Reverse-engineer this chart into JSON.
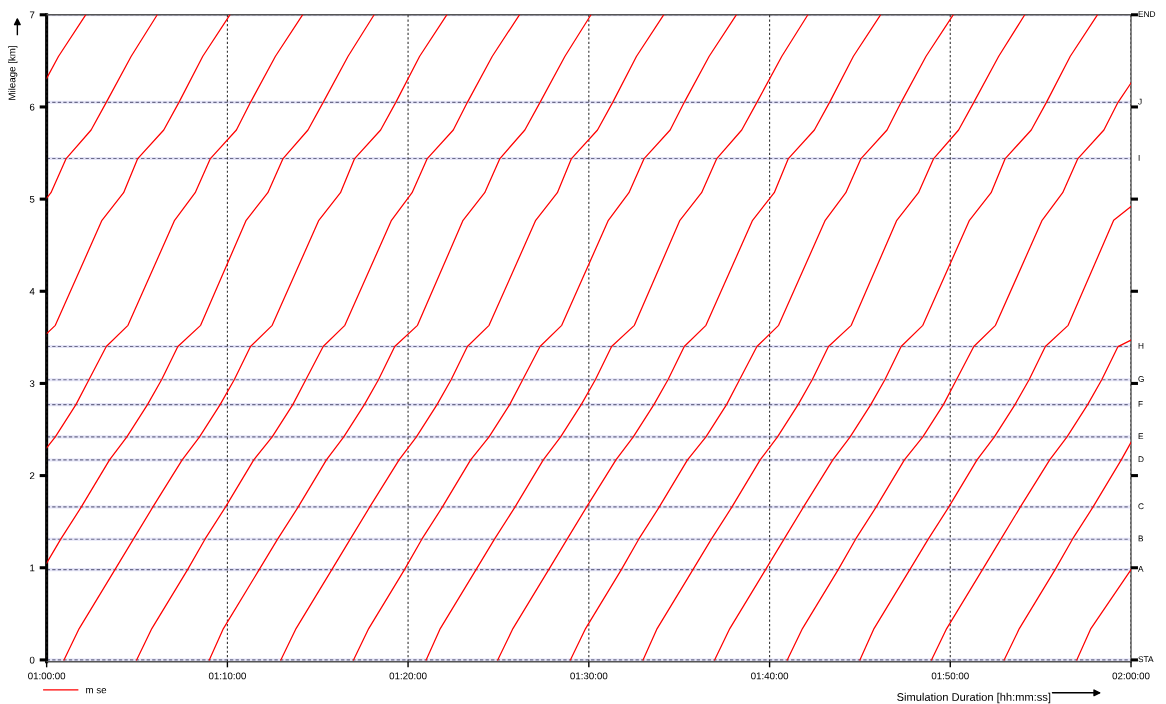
{
  "chart_data": {
    "type": "line",
    "xlabel": "Simulation Duration [hh:mm:ss]",
    "ylabel": "Mileage [km]",
    "xlim": [
      1.0,
      2.0
    ],
    "ylim": [
      -0.02,
      7.0
    ],
    "xticks": [
      {
        "value": 1.0,
        "label": "01:00:00"
      },
      {
        "value": 1.1667,
        "label": "01:10:00"
      },
      {
        "value": 1.3333,
        "label": "01:20:00"
      },
      {
        "value": 1.5,
        "label": "01:30:00"
      },
      {
        "value": 1.6667,
        "label": "01:40:00"
      },
      {
        "value": 1.8333,
        "label": "01:50:00"
      },
      {
        "value": 2.0,
        "label": "02:00:00"
      }
    ],
    "yticks": [
      0,
      1,
      2,
      3,
      4,
      5,
      6,
      7
    ],
    "grid": "x",
    "legend": "bottom left",
    "line_style": "solid",
    "marker": "none",
    "ref_lines": [
      {
        "axis": "y",
        "value": 0,
        "label": "STA",
        "color": "#6b6b8a",
        "line_style": "dashed"
      },
      {
        "axis": "y",
        "value": 0.98,
        "label": "A",
        "color": "#6b6b8a",
        "line_style": "dashed"
      },
      {
        "axis": "y",
        "value": 1.31,
        "label": "B",
        "color": "#6b6b8a",
        "line_style": "dashed"
      },
      {
        "axis": "y",
        "value": 1.66,
        "label": "C",
        "color": "#6b6b8a",
        "line_style": "dashed"
      },
      {
        "axis": "y",
        "value": 2.17,
        "label": "D",
        "color": "#6b6b8a",
        "line_style": "dashed"
      },
      {
        "axis": "y",
        "value": 2.42,
        "label": "E",
        "color": "#6b6b8a",
        "line_style": "dashed"
      },
      {
        "axis": "y",
        "value": 2.77,
        "label": "F",
        "color": "#6b6b8a",
        "line_style": "dashed"
      },
      {
        "axis": "y",
        "value": 3.04,
        "label": "G",
        "color": "#6b6b8a",
        "line_style": "dashed"
      },
      {
        "axis": "y",
        "value": 3.4,
        "label": "H",
        "color": "#6b6b8a",
        "line_style": "dashed"
      },
      {
        "axis": "y",
        "value": 5.44,
        "label": "I",
        "color": "#6b6b8a",
        "line_style": "dashed"
      },
      {
        "axis": "y",
        "value": 6.05,
        "label": "J",
        "color": "#6b6b8a",
        "line_style": "dashed"
      },
      {
        "axis": "y",
        "value": 7.0,
        "label": "END",
        "color": "#6b6b8a",
        "line_style": "dashed"
      }
    ],
    "series": [
      {
        "name": "m se",
        "color": "#ff0000",
        "x": [
          1.0,
          1.011,
          1.036,
          null,
          1.0,
          1.004,
          1.018,
          1.041,
          1.055,
          1.078,
          1.102,
          null,
          1.0,
          1.008,
          1.051,
          1.071,
          1.084,
          1.108,
          1.122,
          1.144,
          1.169,
          null,
          1.0,
          1.008,
          1.027,
          1.039,
          1.055,
          1.075,
          1.118,
          1.137,
          1.151,
          1.175,
          1.188,
          1.211,
          1.236,
          null,
          1.0,
          1.013,
          1.032,
          1.058,
          1.074,
          1.093,
          1.106,
          1.121,
          1.142,
          1.184,
          1.204,
          1.218,
          1.241,
          1.255,
          1.278,
          1.302,
          null,
          1.016,
          1.03,
          1.063,
          1.08,
          1.098,
          1.125,
          1.141,
          1.16,
          1.173,
          1.188,
          1.208,
          1.251,
          1.271,
          1.284,
          1.308,
          1.322,
          1.344,
          1.369,
          null,
          1.083,
          1.097,
          1.13,
          1.146,
          1.165,
          1.191,
          1.208,
          1.227,
          1.239,
          1.255,
          1.275,
          1.318,
          1.337,
          1.351,
          1.375,
          1.388,
          1.411,
          1.436,
          null,
          1.15,
          1.163,
          1.196,
          1.213,
          1.232,
          1.258,
          1.274,
          1.293,
          1.306,
          1.321,
          1.342,
          1.384,
          1.404,
          1.418,
          1.441,
          1.455,
          1.478,
          1.502,
          null,
          1.216,
          1.23,
          1.263,
          1.28,
          1.298,
          1.325,
          1.341,
          1.36,
          1.373,
          1.388,
          1.408,
          1.451,
          1.471,
          1.484,
          1.508,
          1.522,
          1.544,
          1.569,
          null,
          1.283,
          1.297,
          1.33,
          1.346,
          1.365,
          1.391,
          1.408,
          1.427,
          1.439,
          1.455,
          1.475,
          1.518,
          1.537,
          1.551,
          1.575,
          1.588,
          1.611,
          1.636,
          null,
          1.35,
          1.363,
          1.396,
          1.413,
          1.432,
          1.458,
          1.474,
          1.493,
          1.506,
          1.521,
          1.542,
          1.584,
          1.604,
          1.618,
          1.641,
          1.655,
          1.678,
          1.702,
          null,
          1.416,
          1.43,
          1.463,
          1.48,
          1.498,
          1.525,
          1.541,
          1.56,
          1.573,
          1.588,
          1.608,
          1.651,
          1.671,
          1.684,
          1.708,
          1.722,
          1.744,
          1.769,
          null,
          1.483,
          1.497,
          1.53,
          1.546,
          1.565,
          1.591,
          1.608,
          1.627,
          1.639,
          1.655,
          1.675,
          1.718,
          1.737,
          1.751,
          1.775,
          1.788,
          1.811,
          1.836,
          null,
          1.55,
          1.563,
          1.596,
          1.613,
          1.632,
          1.658,
          1.674,
          1.693,
          1.706,
          1.721,
          1.742,
          1.784,
          1.804,
          1.818,
          1.841,
          1.855,
          1.878,
          1.902,
          null,
          1.616,
          1.63,
          1.663,
          1.68,
          1.698,
          1.725,
          1.741,
          1.76,
          1.773,
          1.788,
          1.808,
          1.851,
          1.871,
          1.884,
          1.908,
          1.922,
          1.944,
          1.969,
          null,
          1.683,
          1.697,
          1.73,
          1.746,
          1.765,
          1.791,
          1.808,
          1.827,
          1.839,
          1.855,
          1.875,
          1.918,
          1.937,
          1.951,
          1.975,
          1.988,
          2.0,
          null,
          1.75,
          1.763,
          1.796,
          1.813,
          1.832,
          1.858,
          1.874,
          1.893,
          1.906,
          1.921,
          1.942,
          1.984,
          2.0,
          null,
          1.816,
          1.83,
          1.863,
          1.88,
          1.898,
          1.925,
          1.941,
          1.96,
          1.973,
          1.988,
          2.0,
          null,
          1.883,
          1.897,
          1.93,
          1.946,
          1.965,
          1.991,
          2.0,
          null,
          1.95,
          1.963,
          2.0
        ],
        "values": [
          6.31,
          6.55,
          7.0,
          null,
          5.01,
          5.07,
          5.44,
          5.75,
          6.05,
          6.55,
          7.0,
          null,
          3.54,
          3.63,
          4.77,
          5.07,
          5.44,
          5.75,
          6.05,
          6.55,
          7.0,
          null,
          2.3,
          2.42,
          2.77,
          3.04,
          3.4,
          3.63,
          4.77,
          5.07,
          5.44,
          5.75,
          6.05,
          6.55,
          7.0,
          null,
          1.05,
          1.31,
          1.66,
          2.17,
          2.42,
          2.77,
          3.04,
          3.4,
          3.63,
          4.77,
          5.07,
          5.44,
          5.75,
          6.05,
          6.55,
          7.0,
          null,
          0,
          0.34,
          0.98,
          1.31,
          1.66,
          2.17,
          2.42,
          2.77,
          3.04,
          3.4,
          3.63,
          4.77,
          5.07,
          5.44,
          5.75,
          6.05,
          6.55,
          7.0,
          null,
          0,
          0.34,
          0.98,
          1.31,
          1.66,
          2.17,
          2.42,
          2.77,
          3.04,
          3.4,
          3.63,
          4.77,
          5.07,
          5.44,
          5.75,
          6.05,
          6.55,
          7.0,
          null,
          0,
          0.34,
          0.98,
          1.31,
          1.66,
          2.17,
          2.42,
          2.77,
          3.04,
          3.4,
          3.63,
          4.77,
          5.07,
          5.44,
          5.75,
          6.05,
          6.55,
          7.0,
          null,
          0,
          0.34,
          0.98,
          1.31,
          1.66,
          2.17,
          2.42,
          2.77,
          3.04,
          3.4,
          3.63,
          4.77,
          5.07,
          5.44,
          5.75,
          6.05,
          6.55,
          7.0,
          null,
          0,
          0.34,
          0.98,
          1.31,
          1.66,
          2.17,
          2.42,
          2.77,
          3.04,
          3.4,
          3.63,
          4.77,
          5.07,
          5.44,
          5.75,
          6.05,
          6.55,
          7.0,
          null,
          0,
          0.34,
          0.98,
          1.31,
          1.66,
          2.17,
          2.42,
          2.77,
          3.04,
          3.4,
          3.63,
          4.77,
          5.07,
          5.44,
          5.75,
          6.05,
          6.55,
          7.0,
          null,
          0,
          0.34,
          0.98,
          1.31,
          1.66,
          2.17,
          2.42,
          2.77,
          3.04,
          3.4,
          3.63,
          4.77,
          5.07,
          5.44,
          5.75,
          6.05,
          6.55,
          7.0,
          null,
          0,
          0.34,
          0.98,
          1.31,
          1.66,
          2.17,
          2.42,
          2.77,
          3.04,
          3.4,
          3.63,
          4.77,
          5.07,
          5.44,
          5.75,
          6.05,
          6.55,
          7.0,
          null,
          0,
          0.34,
          0.98,
          1.31,
          1.66,
          2.17,
          2.42,
          2.77,
          3.04,
          3.4,
          3.63,
          4.77,
          5.07,
          5.44,
          5.75,
          6.05,
          6.55,
          7.0,
          null,
          0,
          0.34,
          0.98,
          1.31,
          1.66,
          2.17,
          2.42,
          2.77,
          3.04,
          3.4,
          3.63,
          4.77,
          5.07,
          5.44,
          5.75,
          6.05,
          6.55,
          7.0,
          null,
          0,
          0.34,
          0.98,
          1.31,
          1.66,
          2.17,
          2.42,
          2.77,
          3.04,
          3.4,
          3.63,
          4.77,
          5.07,
          5.44,
          5.75,
          6.05,
          6.26,
          null,
          0,
          0.34,
          0.98,
          1.31,
          1.66,
          2.17,
          2.42,
          2.77,
          3.04,
          3.4,
          3.63,
          4.77,
          4.92,
          null,
          0,
          0.34,
          0.98,
          1.31,
          1.66,
          2.17,
          2.42,
          2.77,
          3.04,
          3.4,
          3.47,
          null,
          0,
          0.34,
          0.98,
          1.31,
          1.66,
          2.17,
          2.36,
          null,
          0,
          0.34,
          0.98
        ]
      }
    ]
  }
}
